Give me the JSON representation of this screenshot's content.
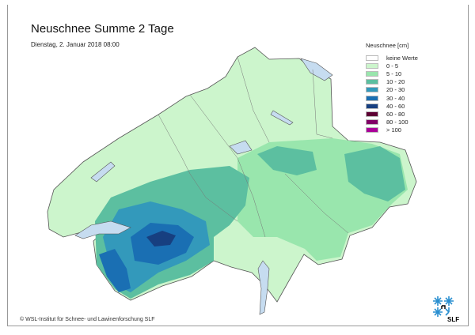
{
  "title": "Neuschnee Summe 2 Tage",
  "subtitle": "Dienstag, 2. Januar 2018 08:00",
  "legend": {
    "title": "Neuschnee [cm]",
    "items": [
      {
        "label": "keine Werte",
        "color": "#ffffff"
      },
      {
        "label": "0 - 5",
        "color": "#ccf5cc"
      },
      {
        "label": "5 - 10",
        "color": "#99e6ad"
      },
      {
        "label": "10 - 20",
        "color": "#5cbfa0"
      },
      {
        "label": "20 - 30",
        "color": "#3399bb"
      },
      {
        "label": "30 - 40",
        "color": "#1a6fb3"
      },
      {
        "label": "40 - 60",
        "color": "#173f80"
      },
      {
        "label": "60 - 80",
        "color": "#5c0033"
      },
      {
        "label": "80 - 100",
        "color": "#800066"
      },
      {
        "label": "> 100",
        "color": "#aa0099"
      }
    ]
  },
  "copyright": "© WSL-Institut für Schnee- und Lawinenforschung SLF",
  "logo_text": "SLF",
  "colors": {
    "lake": "#c6dcf0",
    "border": "#666666"
  }
}
